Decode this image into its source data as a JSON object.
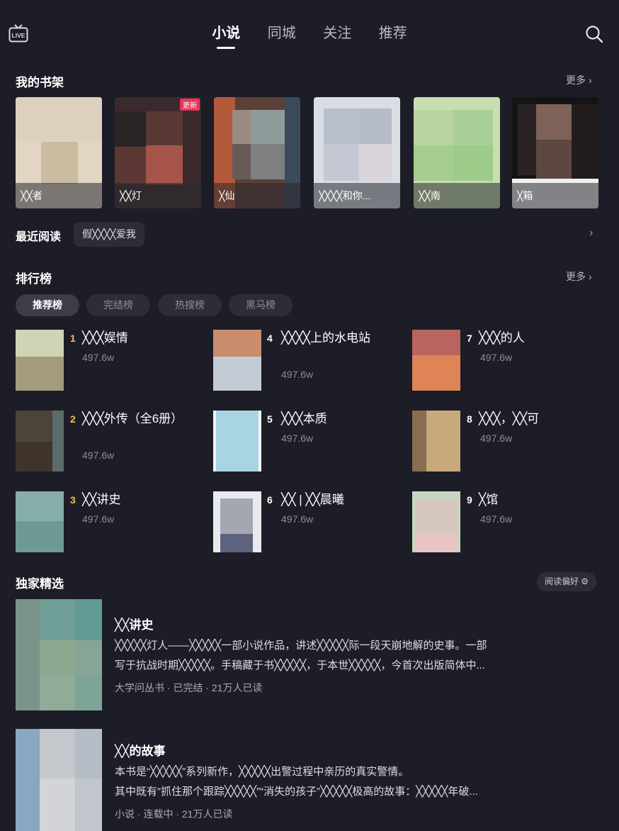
{
  "header": {
    "live_icon": "live-tv-icon",
    "search_icon": "search-icon",
    "tabs": [
      {
        "label": "小说",
        "active": true
      },
      {
        "label": "同城",
        "active": false
      },
      {
        "label": "关注",
        "active": false
      },
      {
        "label": "推荐",
        "active": false
      }
    ]
  },
  "bookshelf": {
    "title": "我的书架",
    "more": "更多",
    "books": [
      {
        "title": "╳╳者",
        "badge": ""
      },
      {
        "title": "╳╳灯",
        "badge": "更新"
      },
      {
        "title": "╳仙",
        "badge": ""
      },
      {
        "title": "╳╳╳╳和你...",
        "badge": ""
      },
      {
        "title": "╳╳南",
        "badge": ""
      },
      {
        "title": "╳箱",
        "badge": ""
      }
    ]
  },
  "recent": {
    "label": "最近阅读",
    "book": "假╳╳╳╳爱我"
  },
  "ranking": {
    "title": "排行榜",
    "more": "更多",
    "filters": [
      {
        "label": "推荐榜",
        "active": true
      },
      {
        "label": "完结榜",
        "active": false
      },
      {
        "label": "热搜榜",
        "active": false
      },
      {
        "label": "黑马榜",
        "active": false
      }
    ],
    "items": [
      {
        "rank": "1",
        "title": "╳╳╳娱情",
        "count": "497.6w"
      },
      {
        "rank": "2",
        "title": "╳╳╳外传（全6册）",
        "count": "497.6w"
      },
      {
        "rank": "3",
        "title": "╳╳讲史",
        "count": "497.6w"
      },
      {
        "rank": "4",
        "title": "╳╳╳╳上的水电站",
        "count": "497.6w"
      },
      {
        "rank": "5",
        "title": "╳╳╳本质",
        "count": "497.6w"
      },
      {
        "rank": "6",
        "title": "╳╳ | ╳╳晨曦",
        "count": "497.6w"
      },
      {
        "rank": "7",
        "title": "╳╳╳的人",
        "count": "497.6w"
      },
      {
        "rank": "8",
        "title": "╳╳╳，╳╳可",
        "count": "497.6w"
      },
      {
        "rank": "9",
        "title": "╳馆",
        "count": "497.6w"
      }
    ]
  },
  "exclusive": {
    "title": "独家精选",
    "preference": "阅读偏好",
    "items": [
      {
        "title": "╳╳讲史",
        "desc_line1": "╳╳╳╳╳灯人——╳╳╳╳╳一部小说作品，讲述╳╳╳╳╳际一段天崩地解的史事。一部",
        "desc_line2": "写于抗战时期╳╳╳╳╳。手稿藏于书╳╳╳╳╳，于本世╳╳╳╳╳，今首次出版简体中...",
        "meta": "大学问丛书 · 已完结 · 21万人已读"
      },
      {
        "title": "╳╳的故事",
        "desc_line1": "本书是“╳╳╳╳╳”系列新作，╳╳╳╳╳出警过程中亲历的真实警情。",
        "desc_line2": "其中既有“抓住那个跟踪╳╳╳╳╳”“消失的孩子”╳╳╳╳╳极高的故事：╳╳╳╳╳年破...",
        "meta": "小说 · 连载中 · 21万人已读"
      }
    ]
  },
  "colors": {
    "background": "#1c1d26",
    "chip": "#2c2d38",
    "rank_top": "#f0c14b",
    "rank_other": "#ffffff",
    "update_badge": "#e8375b"
  }
}
